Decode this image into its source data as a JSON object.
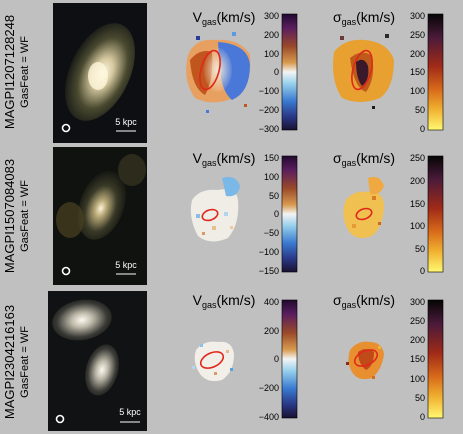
{
  "rows": [
    {
      "id": "MAGPI1207128248",
      "gasfeat": "GasFeat = WF",
      "scale": "5 kpc",
      "vel": {
        "label_main": "V",
        "label_sub": "gas",
        "label_unit": "(km/s)",
        "ticks": [
          "300",
          "200",
          "100",
          "0",
          "−100",
          "−200",
          "−300"
        ]
      },
      "sig": {
        "label_main": "σ",
        "label_sub": "gas",
        "label_unit": "(km/s)",
        "ticks": [
          "300",
          "250",
          "200",
          "150",
          "100",
          "50",
          "0"
        ]
      }
    },
    {
      "id": "MAGPI1507084083",
      "gasfeat": "GasFeat = WF",
      "scale": "5 kpc",
      "vel": {
        "label_main": "V",
        "label_sub": "gas",
        "label_unit": "(km/s)",
        "ticks": [
          "150",
          "100",
          "50",
          "0",
          "−50",
          "−100",
          "−150"
        ]
      },
      "sig": {
        "label_main": "σ",
        "label_sub": "gas",
        "label_unit": "(km/s)",
        "ticks": [
          "250",
          "200",
          "150",
          "100",
          "50",
          "0"
        ]
      }
    },
    {
      "id": "MAGPI2304216163",
      "gasfeat": "GasFeat = WF",
      "scale": "5 kpc",
      "vel": {
        "label_main": "V",
        "label_sub": "gas",
        "label_unit": "(km/s)",
        "ticks": [
          "400",
          "200",
          "0",
          "−200",
          "−400"
        ]
      },
      "sig": {
        "label_main": "σ",
        "label_sub": "gas",
        "label_unit": "(km/s)",
        "ticks": [
          "300",
          "250",
          "200",
          "150",
          "100",
          "50",
          "0"
        ]
      }
    }
  ],
  "colors": {
    "background": "#c0c0c0",
    "ellipse": "#e0281c",
    "vel_colormap": [
      "#2a0a3a",
      "#5a1e5e",
      "#9a4a2a",
      "#d08a40",
      "#f1f1f1",
      "#88c8e8",
      "#3a7ad0",
      "#2a3a8a",
      "#1a1030"
    ],
    "sig_colormap": [
      "#0a0a0a",
      "#4a1a3a",
      "#9a2a1a",
      "#d86a1a",
      "#f0b030",
      "#fff060"
    ]
  }
}
